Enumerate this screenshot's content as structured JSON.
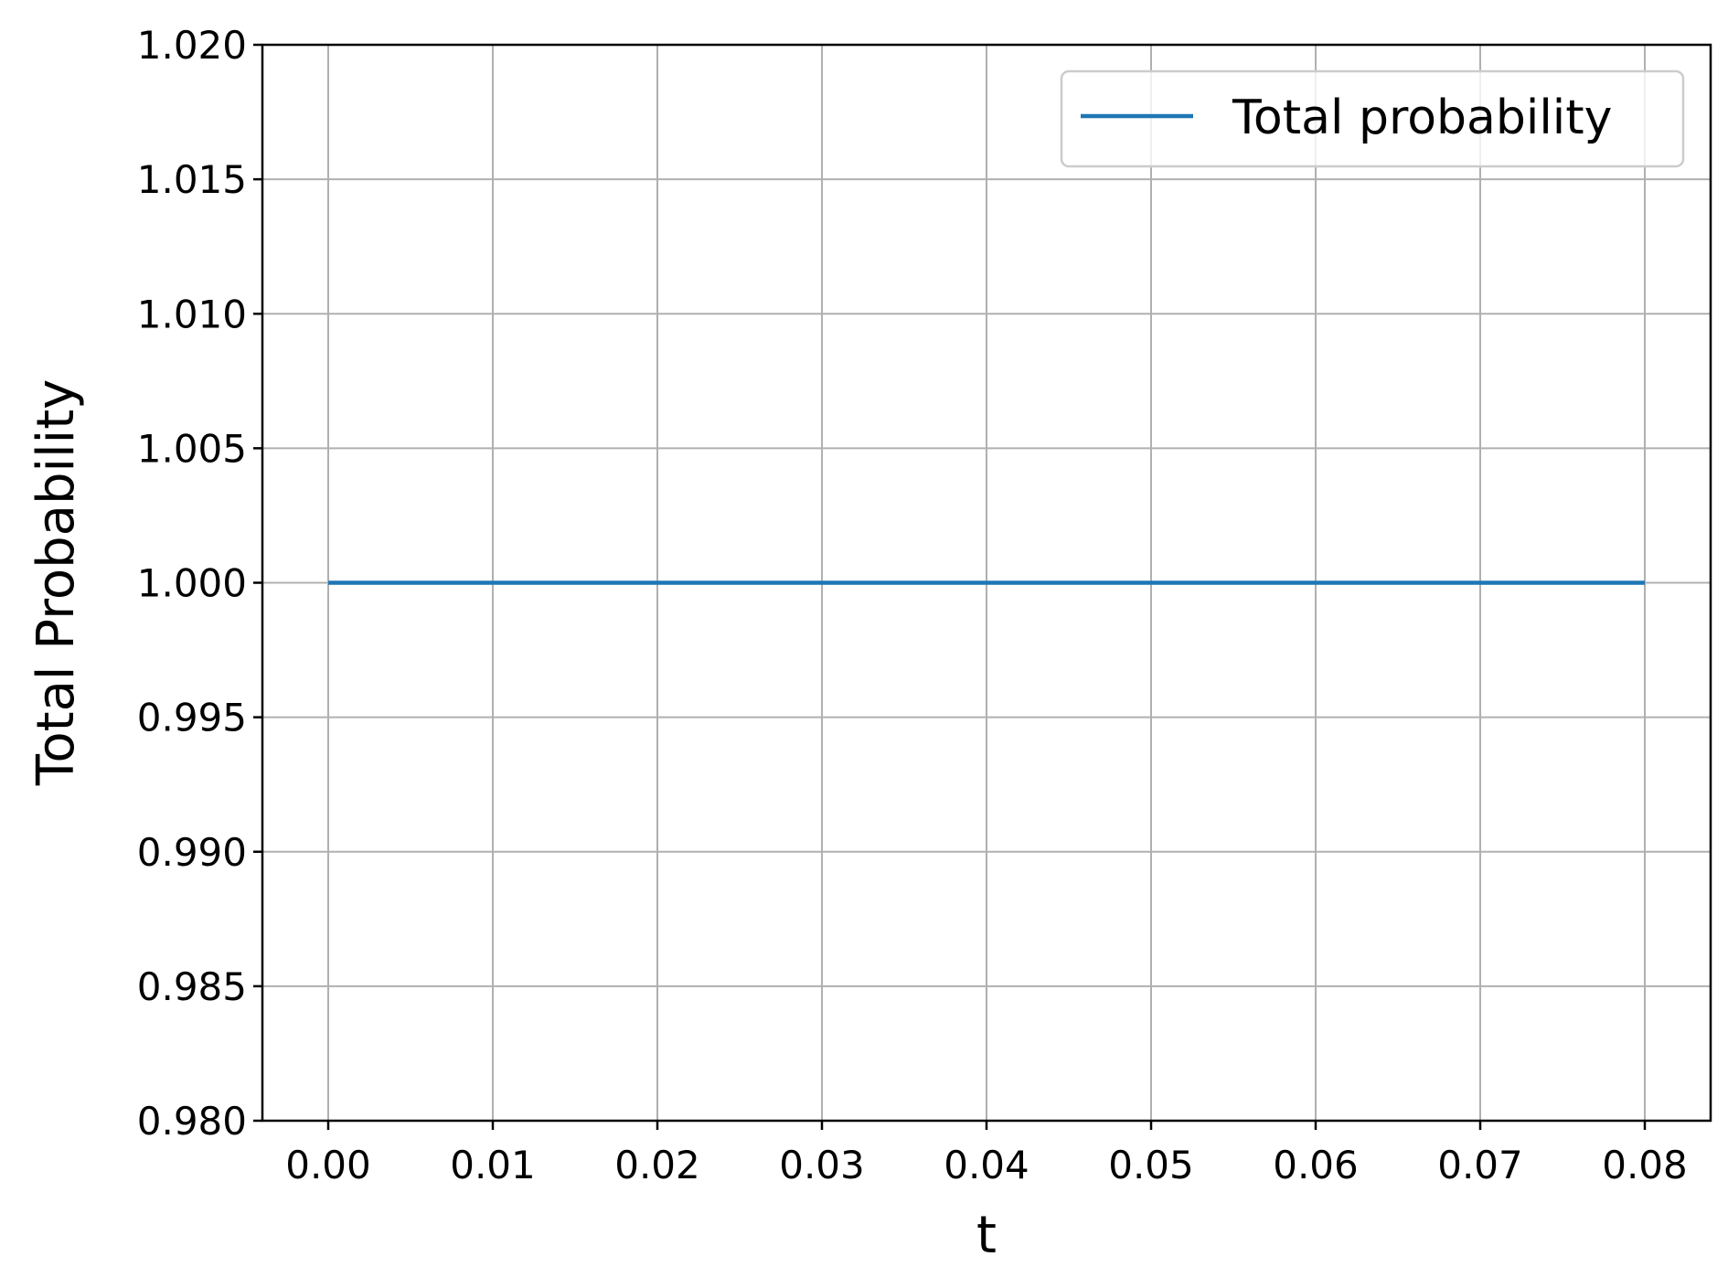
{
  "chart_data": {
    "type": "line",
    "xlabel": "t",
    "ylabel": "Total Probability",
    "xlim": [
      -0.004,
      0.084
    ],
    "ylim": [
      0.98,
      1.02
    ],
    "x_ticks": [
      0.0,
      0.01,
      0.02,
      0.03,
      0.04,
      0.05,
      0.06,
      0.07,
      0.08
    ],
    "x_tick_labels": [
      "0.00",
      "0.01",
      "0.02",
      "0.03",
      "0.04",
      "0.05",
      "0.06",
      "0.07",
      "0.08"
    ],
    "y_ticks": [
      0.98,
      0.985,
      0.99,
      0.995,
      1.0,
      1.005,
      1.01,
      1.015,
      1.02
    ],
    "y_tick_labels": [
      "0.980",
      "0.985",
      "0.990",
      "0.995",
      "1.000",
      "1.005",
      "1.010",
      "1.015",
      "1.020"
    ],
    "grid": true,
    "legend_position": "top-right",
    "series": [
      {
        "name": "Total probability",
        "color": "#1f77b4",
        "x": [
          0.0,
          0.01,
          0.02,
          0.03,
          0.04,
          0.05,
          0.06,
          0.07,
          0.08
        ],
        "y": [
          1.0,
          1.0,
          1.0,
          1.0,
          1.0,
          1.0,
          1.0,
          1.0,
          1.0
        ]
      }
    ]
  }
}
